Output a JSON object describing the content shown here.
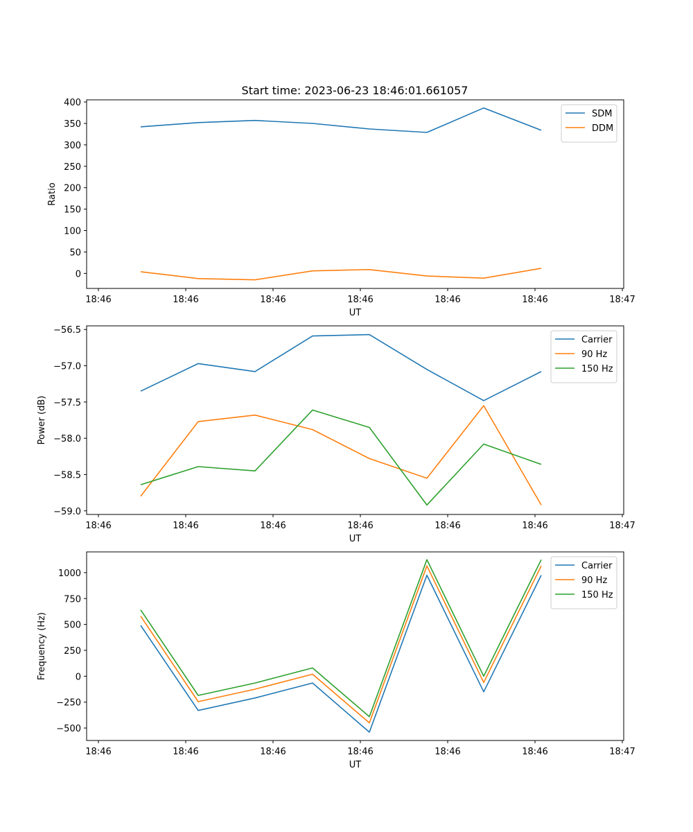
{
  "title": "Start time: 2023-06-23 18:46:01.661057",
  "colors": {
    "c0": "#1f77b4",
    "c1": "#ff7f0e",
    "c2": "#2ca02c"
  },
  "chart_data": [
    {
      "type": "line",
      "xlabel": "UT",
      "ylabel": "Ratio",
      "xtick_labels": [
        "18:46",
        "18:46",
        "18:46",
        "18:46",
        "18:46",
        "18:46",
        "18:46"
      ],
      "x_last_tick_label": "18:47",
      "ylim": [
        -35,
        405
      ],
      "yticks": [
        0,
        50,
        100,
        150,
        200,
        250,
        300,
        350,
        400
      ],
      "ytick_labels": [
        "0",
        "50",
        "100",
        "150",
        "200",
        "250",
        "300",
        "350",
        "400"
      ],
      "legend_position": "upper right",
      "series": [
        {
          "name": "SDM",
          "color": "#1f77b4",
          "values": [
            342,
            352,
            357,
            350,
            337,
            329,
            386,
            334
          ]
        },
        {
          "name": "DDM",
          "color": "#ff7f0e",
          "values": [
            4,
            -12,
            -15,
            6,
            9,
            -6,
            -11,
            12
          ]
        }
      ]
    },
    {
      "type": "line",
      "xlabel": "UT",
      "ylabel": "Power (dB)",
      "xtick_labels": [
        "18:46",
        "18:46",
        "18:46",
        "18:46",
        "18:46",
        "18:46",
        "18:46"
      ],
      "x_last_tick_label": "18:47",
      "ylim": [
        -59.05,
        -56.45
      ],
      "yticks": [
        -59.0,
        -58.5,
        -58.0,
        -57.5,
        -57.0,
        -56.5
      ],
      "ytick_labels": [
        "−59.0",
        "−58.5",
        "−58.0",
        "−57.5",
        "−57.0",
        "−56.5"
      ],
      "legend_position": "upper right",
      "series": [
        {
          "name": "Carrier",
          "color": "#1f77b4",
          "values": [
            -57.35,
            -56.97,
            -57.08,
            -56.59,
            -56.57,
            -57.05,
            -57.48,
            -57.08
          ]
        },
        {
          "name": "90 Hz",
          "color": "#ff7f0e",
          "values": [
            -58.8,
            -57.77,
            -57.68,
            -57.88,
            -58.28,
            -58.55,
            -57.55,
            -58.92
          ]
        },
        {
          "name": "150 Hz",
          "color": "#2ca02c",
          "values": [
            -58.64,
            -58.39,
            -58.45,
            -57.61,
            -57.85,
            -58.92,
            -58.08,
            -58.36
          ]
        }
      ]
    },
    {
      "type": "line",
      "xlabel": "UT",
      "ylabel": "Frequency (Hz)",
      "xtick_labels": [
        "18:46",
        "18:46",
        "18:46",
        "18:46",
        "18:46",
        "18:46",
        "18:46"
      ],
      "x_last_tick_label": "18:47",
      "ylim": [
        -620,
        1200
      ],
      "yticks": [
        -500,
        -250,
        0,
        250,
        500,
        750,
        1000
      ],
      "ytick_labels": [
        "−500",
        "−250",
        "0",
        "250",
        "500",
        "750",
        "1000"
      ],
      "legend_position": "upper right",
      "series": [
        {
          "name": "Carrier",
          "color": "#1f77b4",
          "values": [
            490,
            -330,
            -210,
            -65,
            -540,
            975,
            -150,
            975
          ]
        },
        {
          "name": "90 Hz",
          "color": "#ff7f0e",
          "values": [
            580,
            -245,
            -125,
            20,
            -450,
            1065,
            -60,
            1065
          ]
        },
        {
          "name": "150 Hz",
          "color": "#2ca02c",
          "values": [
            640,
            -185,
            -65,
            80,
            -390,
            1125,
            0,
            1125
          ]
        }
      ]
    }
  ]
}
